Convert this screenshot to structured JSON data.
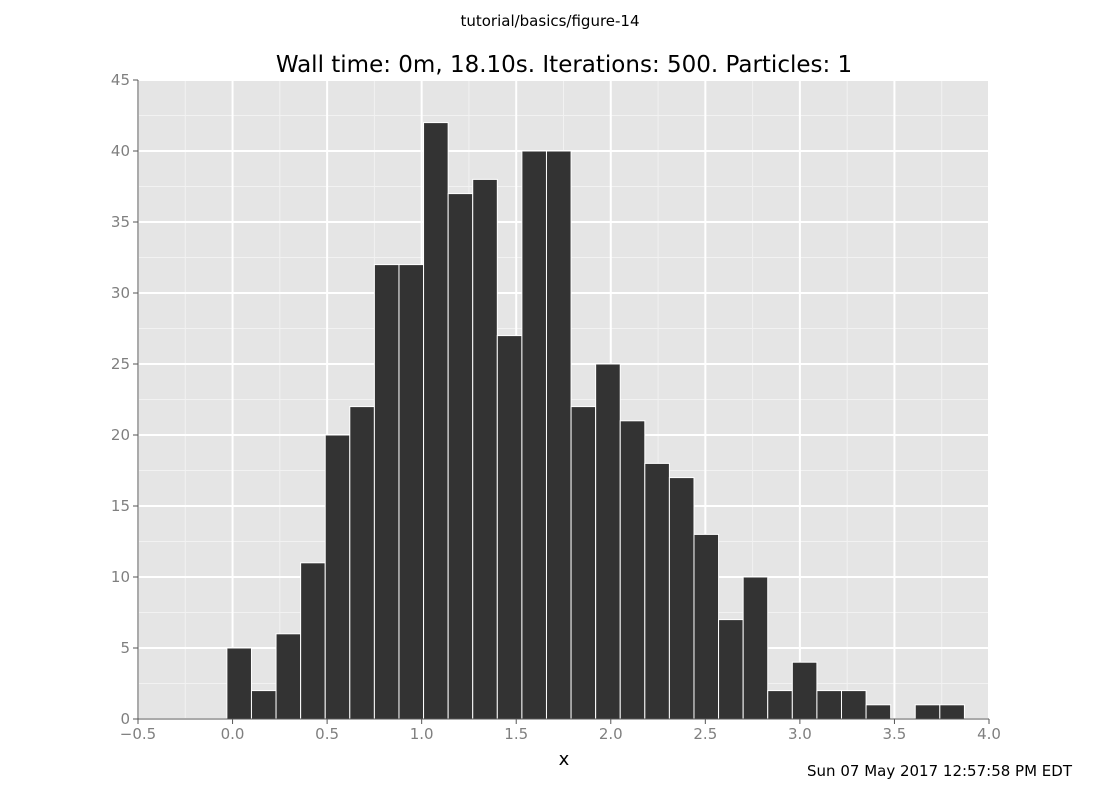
{
  "figure": {
    "suptitle": "tutorial/basics/figure-14",
    "timestamp": "Sun 07 May 2017 12:57:58 PM EDT"
  },
  "colors": {
    "panel_background": "#e5e5e5",
    "grid_major": "#ffffff",
    "grid_minor": "#f2f2f2",
    "bar_fill": "#333333",
    "bar_edge": "#ffffff",
    "tick_label": "#7f7f7f"
  },
  "chart_data": {
    "type": "bar",
    "title": "Wall time: 0m, 18.10s. Iterations: 500. Particles: 1",
    "xlabel": "x",
    "ylabel": "",
    "xlim": [
      -0.5,
      4.0
    ],
    "ylim": [
      0,
      45
    ],
    "xticks": [
      "−0.5",
      "0.0",
      "0.5",
      "1.0",
      "1.5",
      "2.0",
      "2.5",
      "3.0",
      "3.5",
      "4.0"
    ],
    "yticks": [
      "0",
      "5",
      "10",
      "15",
      "20",
      "25",
      "30",
      "35",
      "40",
      "45"
    ],
    "grid": true,
    "bin_width": 0.13,
    "bin_starts": [
      -0.03,
      0.1,
      0.23,
      0.36,
      0.49,
      0.62,
      0.75,
      0.88,
      1.01,
      1.14,
      1.27,
      1.4,
      1.53,
      1.66,
      1.79,
      1.92,
      2.05,
      2.18,
      2.31,
      2.44,
      2.57,
      2.7,
      2.83,
      2.96,
      3.09,
      3.22,
      3.35,
      3.48,
      3.61,
      3.74
    ],
    "counts": [
      5,
      2,
      6,
      11,
      20,
      22,
      32,
      32,
      42,
      37,
      38,
      27,
      40,
      40,
      22,
      25,
      21,
      18,
      17,
      13,
      7,
      10,
      2,
      4,
      2,
      2,
      1,
      0,
      1,
      1
    ]
  }
}
